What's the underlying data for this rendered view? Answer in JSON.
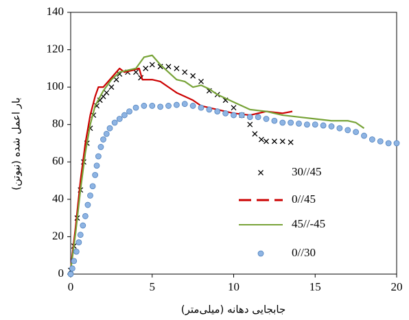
{
  "chart_data": {
    "type": "line",
    "xlabel": "جابجایی دهانه (میلی‌متر)",
    "ylabel": "بار اعمل شده (نیوتن)",
    "xlim": [
      0,
      20
    ],
    "xticks": [
      0,
      5,
      10,
      15,
      20
    ],
    "ylim": [
      0,
      140
    ],
    "yticks": [
      0,
      20,
      40,
      60,
      80,
      100,
      120,
      140
    ],
    "legend": "lower center",
    "series": [
      {
        "name": "30//45",
        "color": "#000000",
        "marker": "x",
        "x": [
          0,
          0.2,
          0.4,
          0.6,
          0.8,
          1.0,
          1.2,
          1.4,
          1.6,
          1.8,
          2.0,
          2.2,
          2.5,
          2.8,
          3.0,
          3.5,
          4.0,
          4.3,
          4.6,
          5.0,
          5.5,
          6.0,
          6.5,
          7.0,
          7.5,
          8.0,
          8.5,
          9.0,
          9.5,
          10.0,
          10.5,
          11.0,
          11.3,
          11.7,
          12.0,
          12.5,
          13.0,
          13.5
        ],
        "values": [
          2,
          15,
          30,
          45,
          60,
          70,
          78,
          85,
          90,
          93,
          95,
          97,
          100,
          104,
          107,
          108,
          108,
          105,
          110,
          112,
          111,
          111,
          110,
          108,
          106,
          103,
          98,
          96,
          93,
          89,
          85,
          80,
          75,
          72,
          71,
          71,
          71,
          70.5
        ]
      },
      {
        "name": "0//45",
        "color": "#cc0000",
        "line_style": "dashed",
        "x": [
          0,
          0.3,
          0.6,
          0.9,
          1.2,
          1.5,
          1.7,
          2.0,
          2.5,
          3.0,
          3.3,
          3.8,
          4.2,
          4.4,
          5.0,
          5.5,
          6.0,
          6.5,
          7.0,
          7.5,
          8.0,
          8.5,
          9.0,
          10.0,
          11.0,
          12.0,
          13.0,
          13.6
        ],
        "values": [
          3,
          25,
          50,
          70,
          85,
          95,
          100,
          100,
          105,
          110,
          108,
          109,
          110,
          104,
          104,
          103,
          100,
          97,
          95,
          93,
          90,
          89,
          88,
          86,
          85,
          87,
          86,
          87
        ]
      },
      {
        "name": "45//-45",
        "color": "#77a337",
        "line_style": "solid",
        "x": [
          0,
          0.3,
          0.6,
          0.9,
          1.2,
          1.5,
          2.0,
          2.5,
          3.0,
          3.5,
          4.0,
          4.5,
          5.0,
          5.5,
          6.0,
          6.5,
          7.0,
          7.5,
          8.0,
          8.5,
          9.0,
          10.0,
          11.0,
          12.0,
          13.0,
          14.0,
          15.0,
          16.0,
          17.0,
          17.5,
          18.0
        ],
        "values": [
          2,
          22,
          45,
          65,
          80,
          90,
          98,
          104,
          108,
          109,
          110,
          116,
          117,
          112,
          108,
          104,
          103,
          100,
          101,
          99,
          96,
          92,
          88,
          87,
          85,
          84,
          83,
          82,
          82,
          81,
          78
        ]
      },
      {
        "name": "0//30",
        "color": "#8eb4e3",
        "marker": "circle",
        "x": [
          0,
          0.1,
          0.2,
          0.35,
          0.5,
          0.6,
          0.75,
          0.9,
          1.05,
          1.2,
          1.35,
          1.5,
          1.6,
          1.7,
          1.85,
          2.0,
          2.2,
          2.4,
          2.7,
          3.0,
          3.3,
          3.6,
          4.0,
          4.5,
          5.0,
          5.5,
          6.0,
          6.5,
          7.0,
          7.5,
          8.0,
          8.5,
          9.0,
          9.5,
          10.0,
          10.5,
          11.0,
          11.5,
          12.0,
          12.5,
          13.0,
          13.5,
          14.0,
          14.5,
          15.0,
          15.5,
          16.0,
          16.5,
          17.0,
          17.5,
          18.0,
          18.5,
          19.0,
          19.5,
          20.0
        ],
        "values": [
          0,
          3,
          7,
          12,
          17,
          21,
          26,
          31,
          37,
          42,
          47,
          53,
          58,
          63,
          68,
          72,
          75,
          78,
          81,
          83,
          85,
          87,
          89,
          90,
          90,
          89.5,
          90,
          90.5,
          91,
          90,
          89,
          88,
          87,
          86,
          85,
          85,
          84,
          84,
          83,
          82,
          81,
          81,
          80.5,
          80,
          80,
          79.5,
          79,
          78,
          77,
          76,
          74,
          72,
          71,
          70,
          70
        ]
      }
    ]
  }
}
